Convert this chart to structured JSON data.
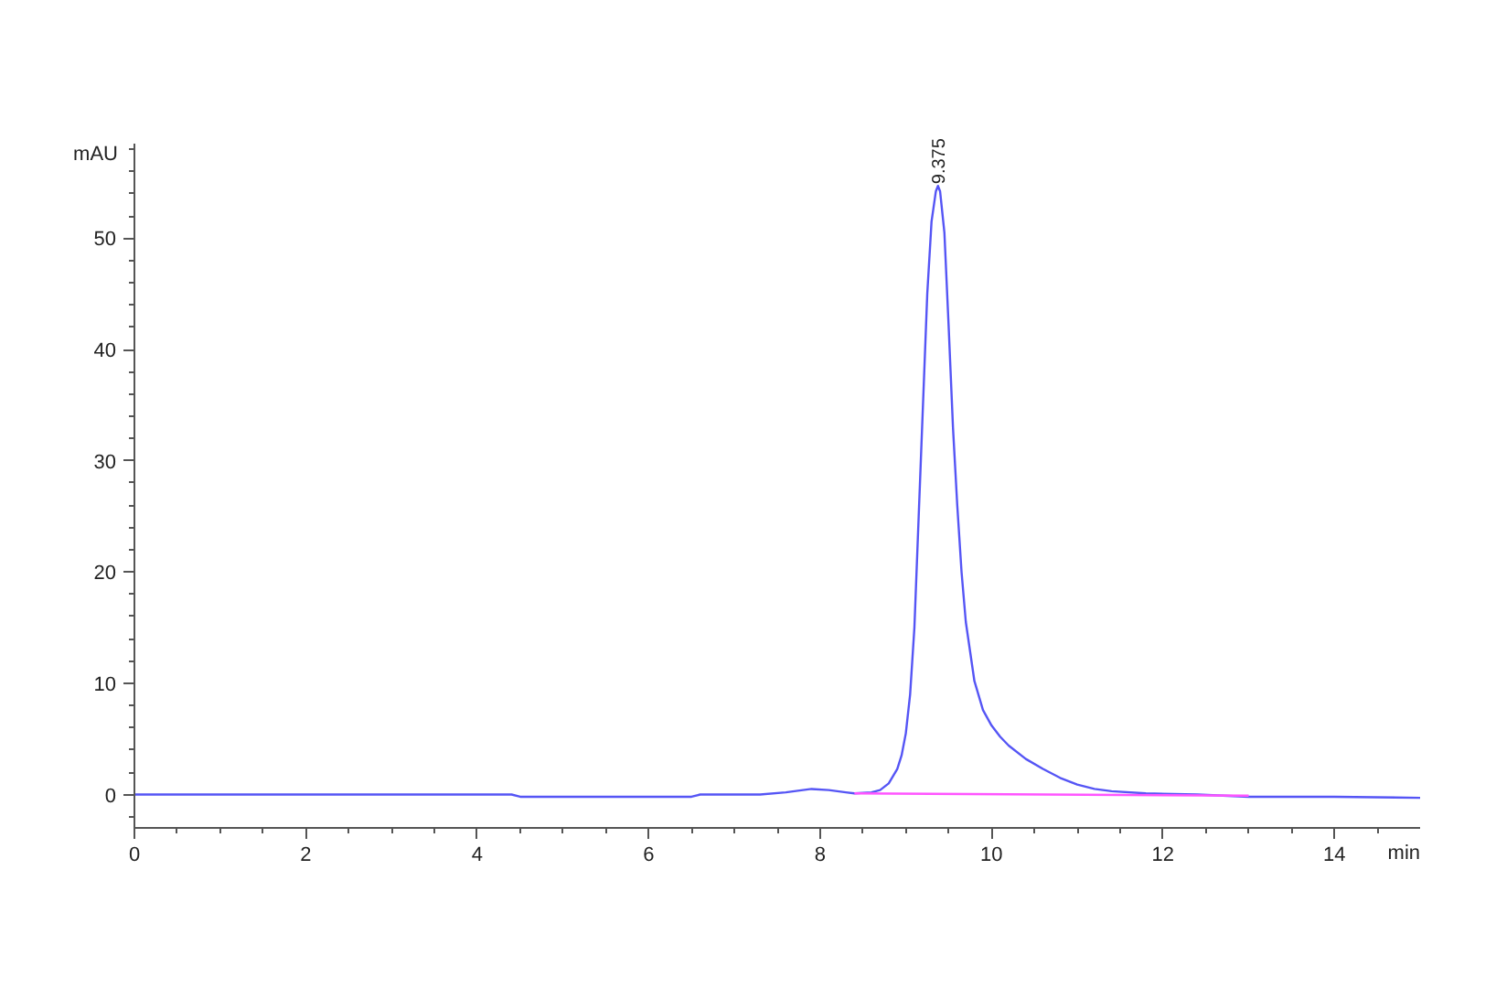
{
  "chart_data": {
    "type": "line",
    "xlabel": "min",
    "ylabel": "mAU",
    "xlim": [
      0,
      15
    ],
    "ylim": [
      -3,
      58.5
    ],
    "xticks": [
      0,
      {
        "value": 0.5,
        "label": null
      },
      {
        "value": 1,
        "label": null
      },
      {
        "value": 1.5,
        "label": null
      },
      2,
      {
        "value": 2.5,
        "label": null
      },
      {
        "value": 3,
        "label": null
      },
      {
        "value": 3.5,
        "label": null
      },
      4,
      {
        "value": 4.5,
        "label": null
      },
      {
        "value": 5,
        "label": null
      },
      {
        "value": 5.5,
        "label": null
      },
      6,
      {
        "value": 6.5,
        "label": null
      },
      {
        "value": 7,
        "label": null
      },
      {
        "value": 7.5,
        "label": null
      },
      8,
      {
        "value": 8.5,
        "label": null
      },
      {
        "value": 9,
        "label": null
      },
      {
        "value": 9.5,
        "label": null
      },
      10,
      {
        "value": 10.5,
        "label": null
      },
      {
        "value": 11,
        "label": null
      },
      {
        "value": 11.5,
        "label": null
      },
      12,
      {
        "value": 12.5,
        "label": null
      },
      {
        "value": 13,
        "label": null
      },
      {
        "value": 13.5,
        "label": null
      },
      14,
      {
        "value": 14.5,
        "label": null
      }
    ],
    "yticks": [
      {
        "value": -2,
        "label": null
      },
      0,
      {
        "value": 2,
        "label": null
      },
      {
        "value": 4,
        "label": null
      },
      {
        "value": 6,
        "label": null
      },
      {
        "value": 8,
        "label": null
      },
      10,
      {
        "value": 12,
        "label": null
      },
      {
        "value": 14,
        "label": null
      },
      {
        "value": 16,
        "label": null
      },
      {
        "value": 18,
        "label": null
      },
      20,
      {
        "value": 22,
        "label": null
      },
      {
        "value": 24,
        "label": null
      },
      {
        "value": 26,
        "label": null
      },
      {
        "value": 28,
        "label": null
      },
      30,
      {
        "value": 32,
        "label": null
      },
      {
        "value": 34,
        "label": null
      },
      {
        "value": 36,
        "label": null
      },
      {
        "value": 38,
        "label": null
      },
      40,
      {
        "value": 42,
        "label": null
      },
      {
        "value": 44,
        "label": null
      },
      {
        "value": 46,
        "label": null
      },
      {
        "value": 48,
        "label": null
      },
      50,
      {
        "value": 52,
        "label": null
      },
      {
        "value": 54,
        "label": null
      },
      {
        "value": 56,
        "label": null
      },
      {
        "value": 58,
        "label": null
      }
    ],
    "series": [
      {
        "color": "#5555f5",
        "x": [
          0,
          0.9,
          2,
          3,
          4.4,
          4.5,
          5.5,
          6.5,
          6.6,
          7.3,
          7.6,
          7.9,
          8.1,
          8.3,
          8.4,
          8.6,
          8.7,
          8.8,
          8.9,
          8.95,
          9.0,
          9.05,
          9.1,
          9.15,
          9.2,
          9.25,
          9.3,
          9.35,
          9.375,
          9.4,
          9.45,
          9.5,
          9.55,
          9.6,
          9.65,
          9.7,
          9.8,
          9.9,
          10.0,
          10.1,
          10.2,
          10.4,
          10.6,
          10.8,
          11.0,
          11.2,
          11.4,
          11.8,
          12.4,
          13.0,
          14,
          15
        ],
        "values": [
          0,
          0,
          0,
          0,
          0,
          -0.2,
          -0.2,
          -0.2,
          0,
          0,
          0.2,
          0.5,
          0.4,
          0.2,
          0.1,
          0.2,
          0.4,
          1.0,
          2.3,
          3.5,
          5.5,
          9.0,
          15,
          25,
          35,
          45,
          51.5,
          54.2,
          54.7,
          54.2,
          50.5,
          42,
          33,
          26,
          20,
          15.5,
          10.2,
          7.6,
          6.2,
          5.2,
          4.4,
          3.2,
          2.3,
          1.5,
          0.9,
          0.5,
          0.3,
          0.1,
          0,
          -0.2,
          -0.2,
          -0.3
        ]
      },
      {
        "color": "#ff55ff",
        "x": [
          8.4,
          13.0
        ],
        "values": [
          0.1,
          -0.1
        ]
      }
    ],
    "annotations": [
      {
        "text": "9.375",
        "x": 9.375,
        "y": 54.7
      }
    ]
  }
}
